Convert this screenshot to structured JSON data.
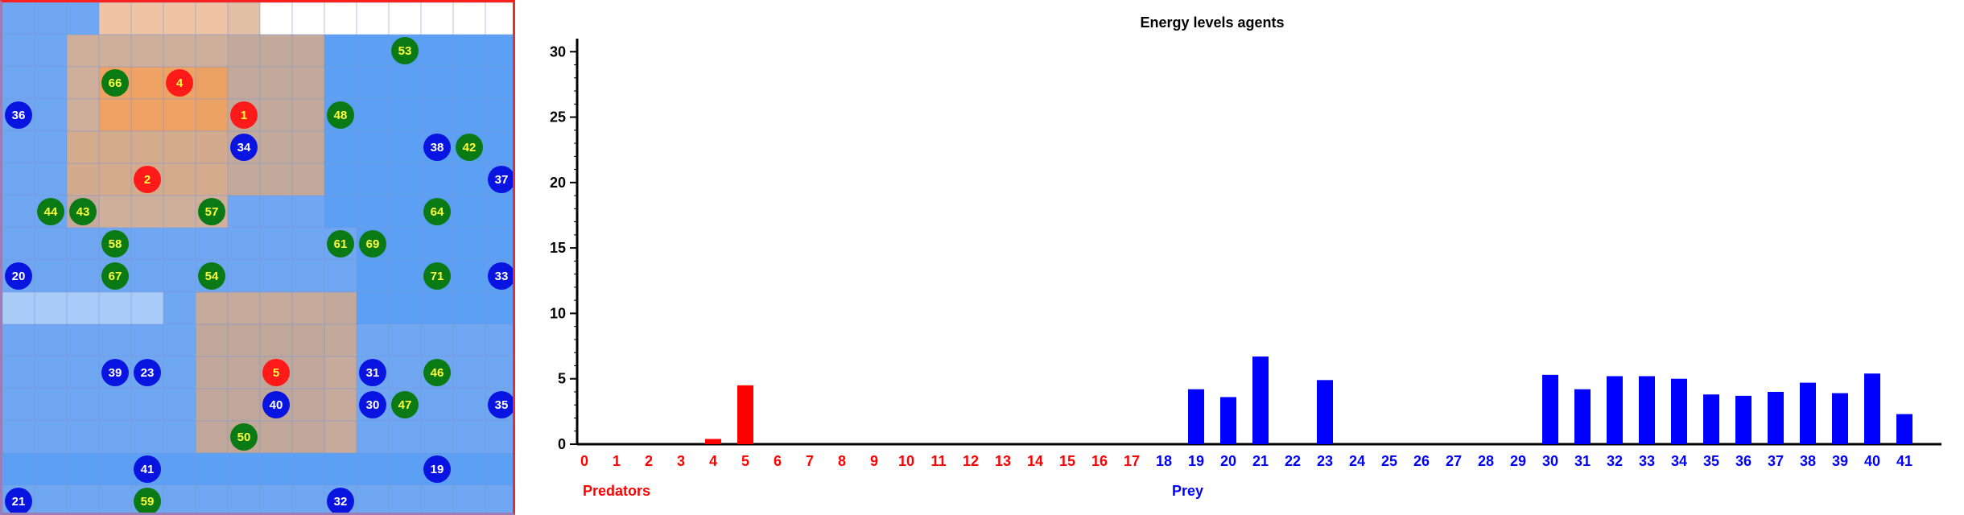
{
  "grid": {
    "cols": 16,
    "rows": 16,
    "patches": [
      "0001111222222222",
      "0011111222222222",
      "0011112222222222",
      "0011112222222222",
      "0011112222222222",
      "0001111222222222",
      "0001111000222222",
      "0000000000022222",
      "0000000000022222",
      "1111100000222222",
      "0000003333200000",
      "0000003333000000",
      "0000003333000000",
      "0000003333000000",
      "2222222222222222",
      "0000000000000000"
    ],
    "patch_colors": {
      "0": "#6fa7f2",
      "1": "#a8cbf7",
      "2": "#5ba0f5",
      "3": "#4d8ce8"
    },
    "predator_territory": [
      {
        "c0": 3,
        "r0": 0,
        "c1": 8,
        "r1": 1,
        "level": 3
      },
      {
        "c0": 2,
        "r0": 1,
        "c1": 10,
        "r1": 6,
        "level": 1
      },
      {
        "c0": 3,
        "r0": 2,
        "c1": 7,
        "r1": 4,
        "level": 2
      },
      {
        "c0": 2,
        "r0": 4,
        "c1": 7,
        "r1": 7,
        "level": 1
      },
      {
        "c0": 6,
        "r0": 9,
        "c1": 11,
        "r1": 14,
        "level": 1
      }
    ],
    "territory_colors": {
      "1": "rgba(214,170,140,0.85)",
      "2": "rgba(243,160,90,0.85)",
      "3": "rgba(250,195,150,0.85)"
    },
    "white_top": {
      "c0": 8,
      "c1": 16
    },
    "agents": [
      {
        "id": "53",
        "kind": "green",
        "col": 12,
        "row": 1
      },
      {
        "id": "66",
        "kind": "green",
        "col": 3,
        "row": 2
      },
      {
        "id": "4",
        "kind": "red",
        "col": 5,
        "row": 2
      },
      {
        "id": "36",
        "kind": "blue",
        "col": 0,
        "row": 3
      },
      {
        "id": "1",
        "kind": "red",
        "col": 7,
        "row": 3
      },
      {
        "id": "48",
        "kind": "green",
        "col": 10,
        "row": 3
      },
      {
        "id": "34",
        "kind": "blue",
        "col": 7,
        "row": 4
      },
      {
        "id": "38",
        "kind": "blue",
        "col": 13,
        "row": 4
      },
      {
        "id": "42",
        "kind": "green",
        "col": 14,
        "row": 4
      },
      {
        "id": "2",
        "kind": "red",
        "col": 4,
        "row": 5
      },
      {
        "id": "37",
        "kind": "blue",
        "col": 15,
        "row": 5
      },
      {
        "id": "44",
        "kind": "green",
        "col": 1,
        "row": 6
      },
      {
        "id": "43",
        "kind": "green",
        "col": 2,
        "row": 6
      },
      {
        "id": "57",
        "kind": "green",
        "col": 6,
        "row": 6
      },
      {
        "id": "64",
        "kind": "green",
        "col": 13,
        "row": 6
      },
      {
        "id": "58",
        "kind": "green",
        "col": 3,
        "row": 7
      },
      {
        "id": "61",
        "kind": "green",
        "col": 10,
        "row": 7
      },
      {
        "id": "69",
        "kind": "green",
        "col": 11,
        "row": 7
      },
      {
        "id": "20",
        "kind": "blue",
        "col": 0,
        "row": 8
      },
      {
        "id": "67",
        "kind": "green",
        "col": 3,
        "row": 8
      },
      {
        "id": "54",
        "kind": "green",
        "col": 6,
        "row": 8
      },
      {
        "id": "71",
        "kind": "green",
        "col": 13,
        "row": 8
      },
      {
        "id": "33",
        "kind": "blue",
        "col": 15,
        "row": 8
      },
      {
        "id": "39",
        "kind": "blue",
        "col": 3,
        "row": 11
      },
      {
        "id": "23",
        "kind": "blue",
        "col": 4,
        "row": 11
      },
      {
        "id": "5",
        "kind": "red",
        "col": 8,
        "row": 11
      },
      {
        "id": "31",
        "kind": "blue",
        "col": 11,
        "row": 11
      },
      {
        "id": "46",
        "kind": "green",
        "col": 13,
        "row": 11
      },
      {
        "id": "40",
        "kind": "blue",
        "col": 8,
        "row": 12
      },
      {
        "id": "30",
        "kind": "blue",
        "col": 11,
        "row": 12
      },
      {
        "id": "47",
        "kind": "green",
        "col": 12,
        "row": 12
      },
      {
        "id": "35",
        "kind": "blue",
        "col": 15,
        "row": 12
      },
      {
        "id": "50",
        "kind": "green",
        "col": 7,
        "row": 13
      },
      {
        "id": "41",
        "kind": "blue",
        "col": 4,
        "row": 14
      },
      {
        "id": "19",
        "kind": "blue",
        "col": 13,
        "row": 14
      },
      {
        "id": "21",
        "kind": "blue",
        "col": 0,
        "row": 15
      },
      {
        "id": "59",
        "kind": "green",
        "col": 4,
        "row": 15
      },
      {
        "id": "32",
        "kind": "blue",
        "col": 10,
        "row": 15
      }
    ],
    "agent_colors": {
      "red": "#ff1a1a",
      "blue": "#0a14e0",
      "green": "#0a7a14"
    },
    "label_colors": {
      "red": "#ffff40",
      "blue": "#ffffff",
      "green": "#ffff40"
    }
  },
  "chart_data": {
    "type": "bar",
    "title": "Energy levels agents",
    "categories": [
      "0",
      "1",
      "2",
      "3",
      "4",
      "5",
      "6",
      "7",
      "8",
      "9",
      "10",
      "11",
      "12",
      "13",
      "14",
      "15",
      "16",
      "17",
      "18",
      "19",
      "20",
      "21",
      "22",
      "23",
      "24",
      "25",
      "26",
      "27",
      "28",
      "29",
      "30",
      "31",
      "32",
      "33",
      "34",
      "35",
      "36",
      "37",
      "38",
      "39",
      "40",
      "41"
    ],
    "values": [
      0,
      0,
      0,
      0,
      0.4,
      4.5,
      0,
      0,
      0,
      0,
      0,
      0,
      0,
      0,
      0,
      0,
      0,
      0,
      0,
      4.2,
      3.6,
      6.7,
      0,
      4.9,
      0,
      0,
      0,
      0,
      0,
      0,
      5.3,
      4.2,
      5.2,
      5.2,
      5.0,
      3.8,
      3.7,
      4.0,
      4.7,
      3.9,
      5.4,
      2.3
    ],
    "predator_count": 18,
    "ylim": [
      0,
      31
    ],
    "yticks": [
      0,
      5,
      10,
      15,
      20,
      25,
      30
    ],
    "predators_label": "Predators",
    "prey_label": "Prey",
    "predator_color": "#ff0000",
    "prey_color": "#0000ff"
  }
}
